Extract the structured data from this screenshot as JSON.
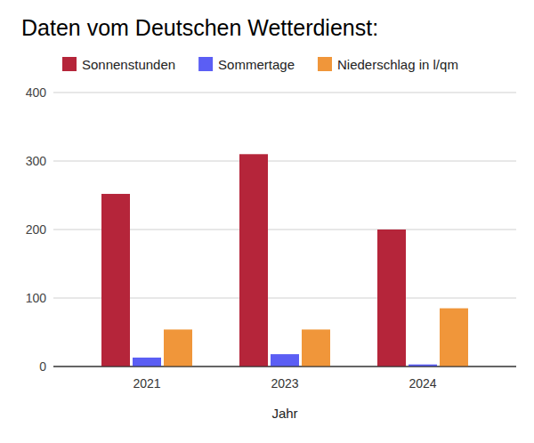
{
  "chart_data": {
    "type": "bar",
    "title": "Daten vom Deutschen Wetterdienst:",
    "x_label": "Jahr",
    "categories": [
      "2021",
      "2023",
      "2024"
    ],
    "series": [
      {
        "name": "Sonnenstunden",
        "color": "#b5253a",
        "values": [
          252,
          310,
          200
        ]
      },
      {
        "name": "Sommertage",
        "color": "#5b5ef4",
        "values": [
          13,
          18,
          3
        ]
      },
      {
        "name": "Niederschlag in l/qm",
        "color": "#f0963a",
        "values": [
          54,
          54,
          85
        ]
      }
    ],
    "ylim": [
      0,
      400
    ],
    "yticks": [
      0,
      100,
      200,
      300,
      400
    ],
    "grid": true,
    "legend": "top"
  }
}
